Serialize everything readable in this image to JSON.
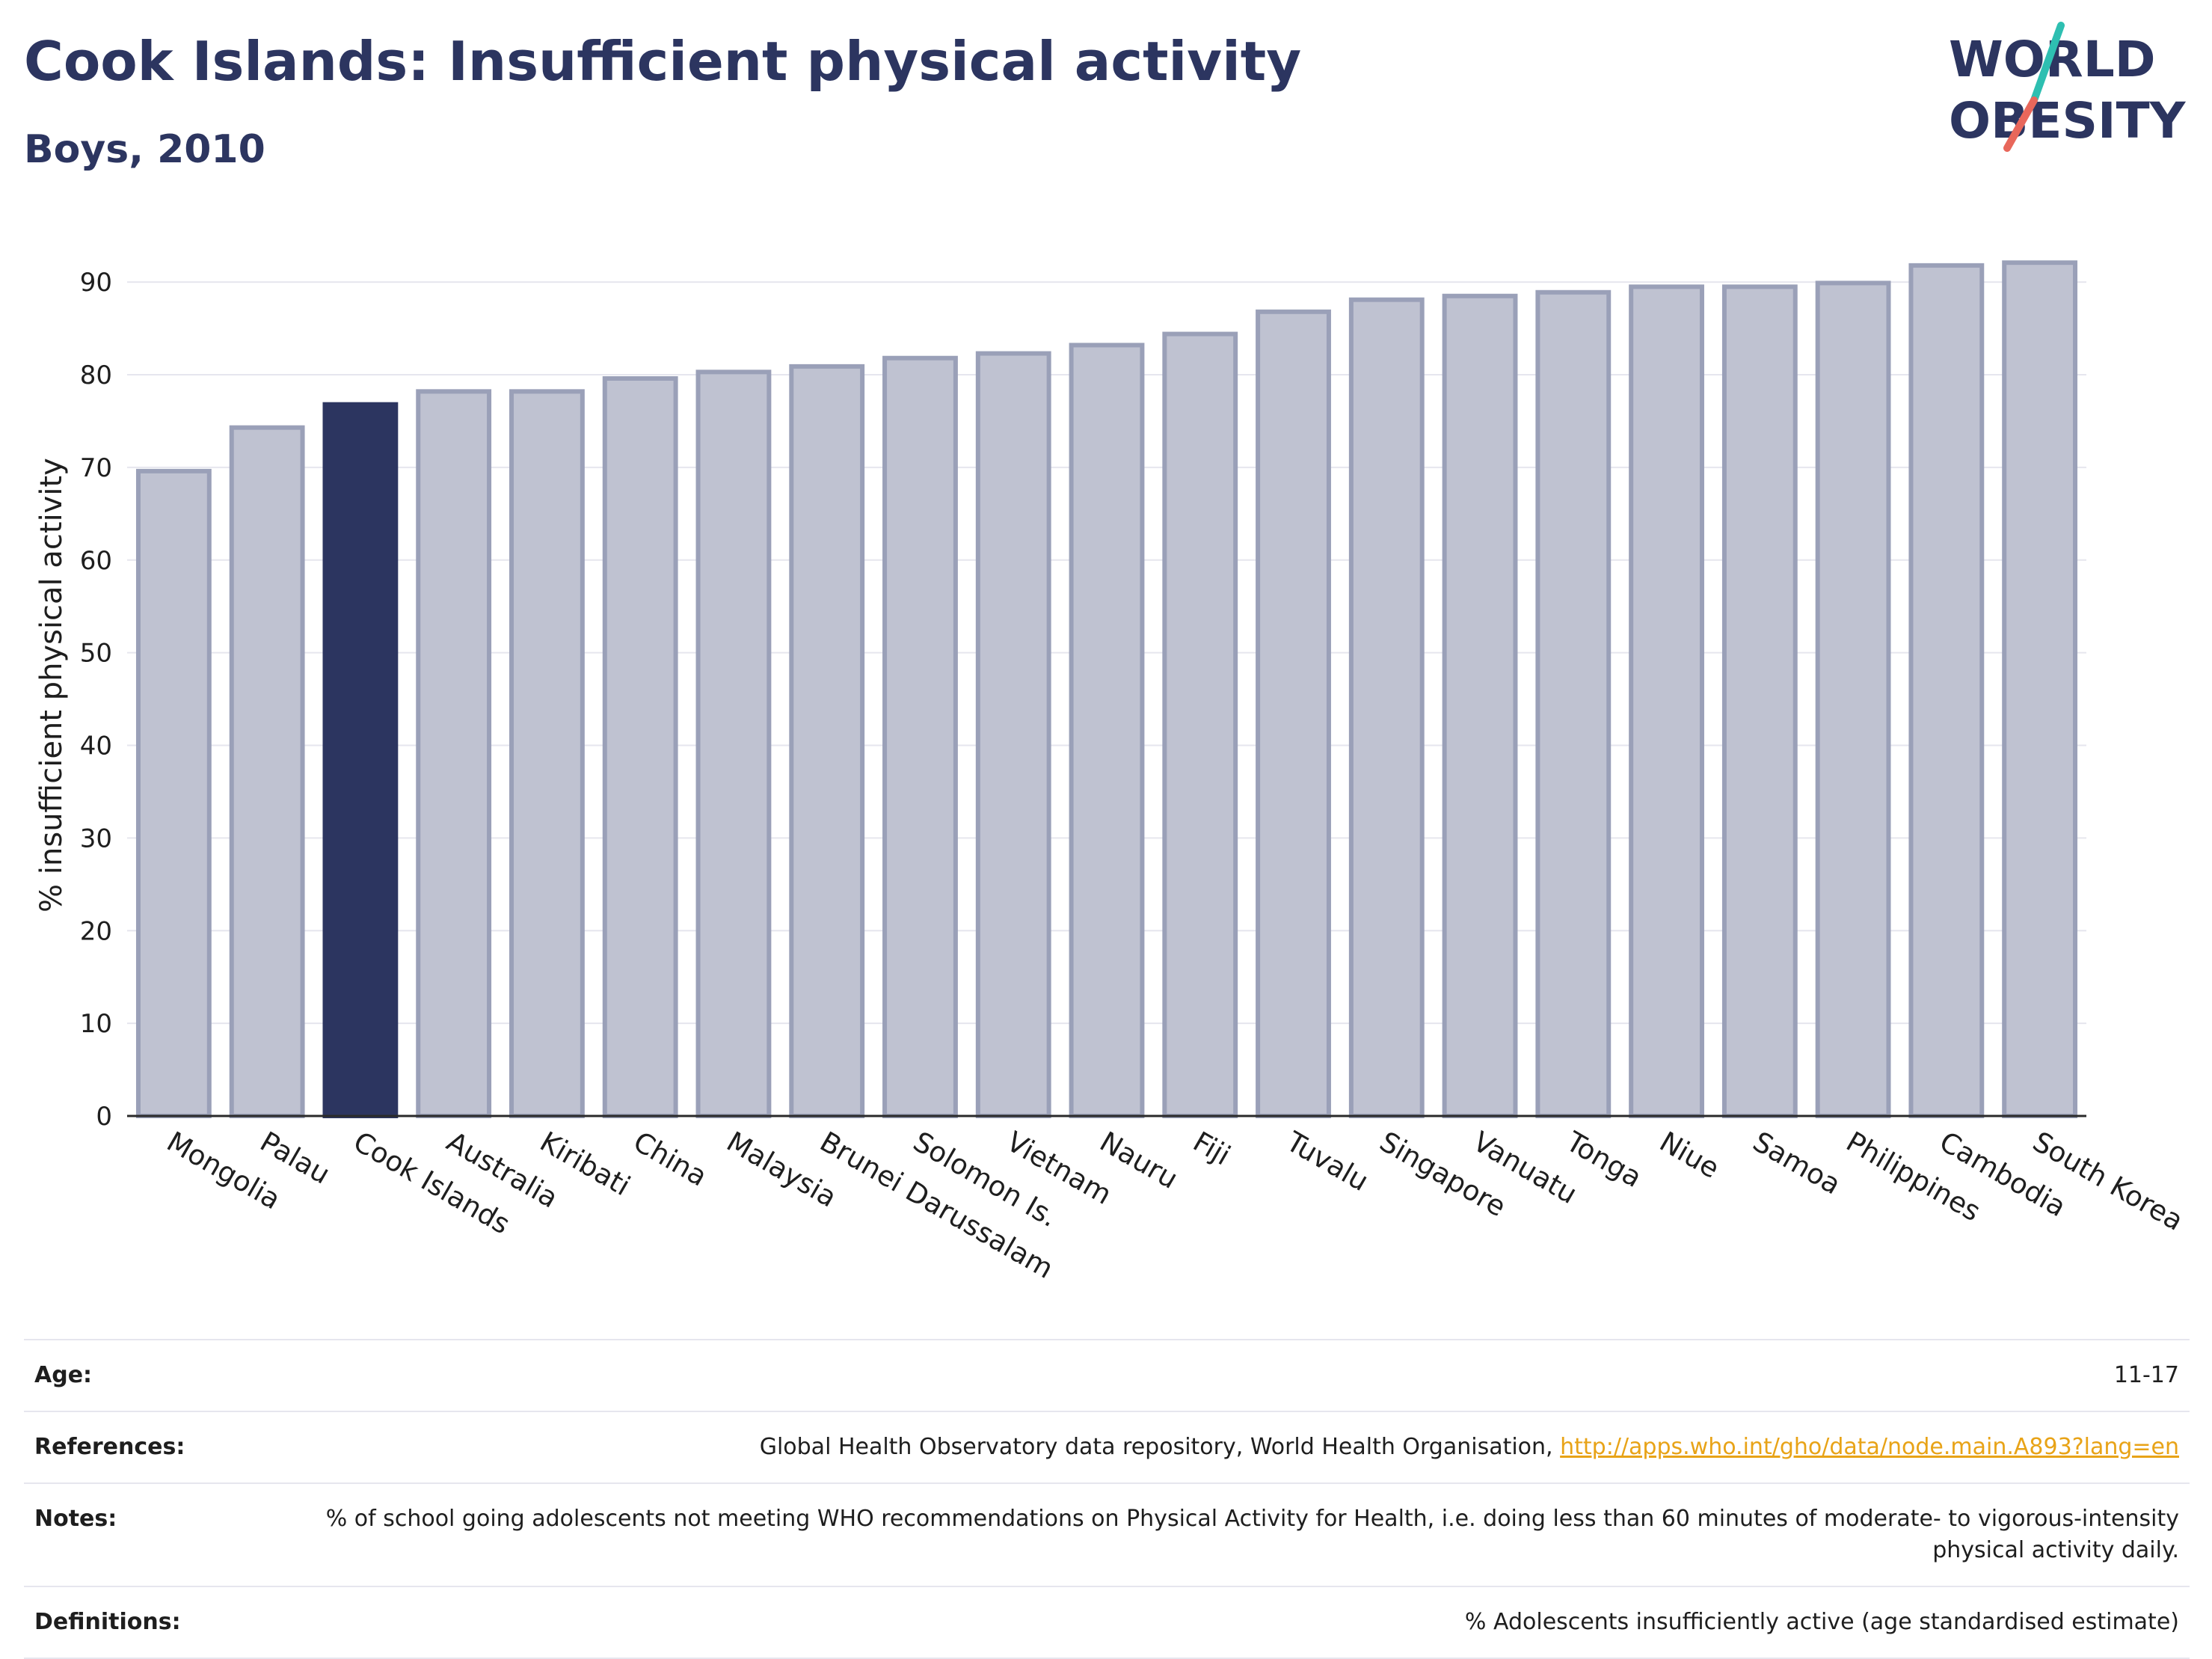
{
  "header": {
    "title": "Cook Islands: Insufficient physical activity",
    "subtitle": "Boys, 2010"
  },
  "logo": {
    "line1": "WORLD",
    "line2": "OBESITY",
    "colors": {
      "text": "#2c3560",
      "slash_teal": "#2ebfb1",
      "slash_coral": "#e8675b"
    }
  },
  "colors": {
    "bar": "#bfc2d1",
    "bar_stroke": "#9aa0b8",
    "highlight": "#2c3560",
    "grid": "#e6e6ee",
    "link": "#e8a317"
  },
  "chart_data": {
    "type": "bar",
    "title": "Cook Islands: Insufficient physical activity",
    "subtitle": "Boys, 2010",
    "xlabel": "",
    "ylabel": "% insufficient physical activity",
    "ylim": [
      0,
      93
    ],
    "yticks": [
      "0",
      "10",
      "20",
      "30",
      "40",
      "50",
      "60",
      "70",
      "80",
      "90"
    ],
    "grid": true,
    "highlight": "Cook Islands",
    "categories": [
      "Mongolia",
      "Palau",
      "Cook Islands",
      "Australia",
      "Kiribati",
      "China",
      "Malaysia",
      "Brunei Darussalam",
      "Solomon Is.",
      "Vietnam",
      "Nauru",
      "Fiji",
      "Tuvalu",
      "Singapore",
      "Vanuatu",
      "Tonga",
      "Niue",
      "Samoa",
      "Philippines",
      "Cambodia",
      "South Korea"
    ],
    "values": [
      69.6,
      74.3,
      76.8,
      78.2,
      78.2,
      79.6,
      80.3,
      80.9,
      81.8,
      82.3,
      83.2,
      84.4,
      86.8,
      88.1,
      88.5,
      88.9,
      89.5,
      89.5,
      89.9,
      91.8,
      92.1
    ]
  },
  "meta": {
    "age_label": "Age:",
    "age_value": "11-17",
    "references_label": "References:",
    "references_text": "Global Health Observatory data repository, World Health Organisation,",
    "references_link": "http://apps.who.int/gho/data/node.main.A893?lang=en",
    "notes_label": "Notes:",
    "notes_value": "% of school going adolescents not meeting WHO recommendations on Physical Activity for Health, i.e. doing less than 60 minutes of moderate- to vigorous-intensity physical activity daily.",
    "definitions_label": "Definitions:",
    "definitions_value": "% Adolescents insufficiently active (age standardised estimate)"
  }
}
